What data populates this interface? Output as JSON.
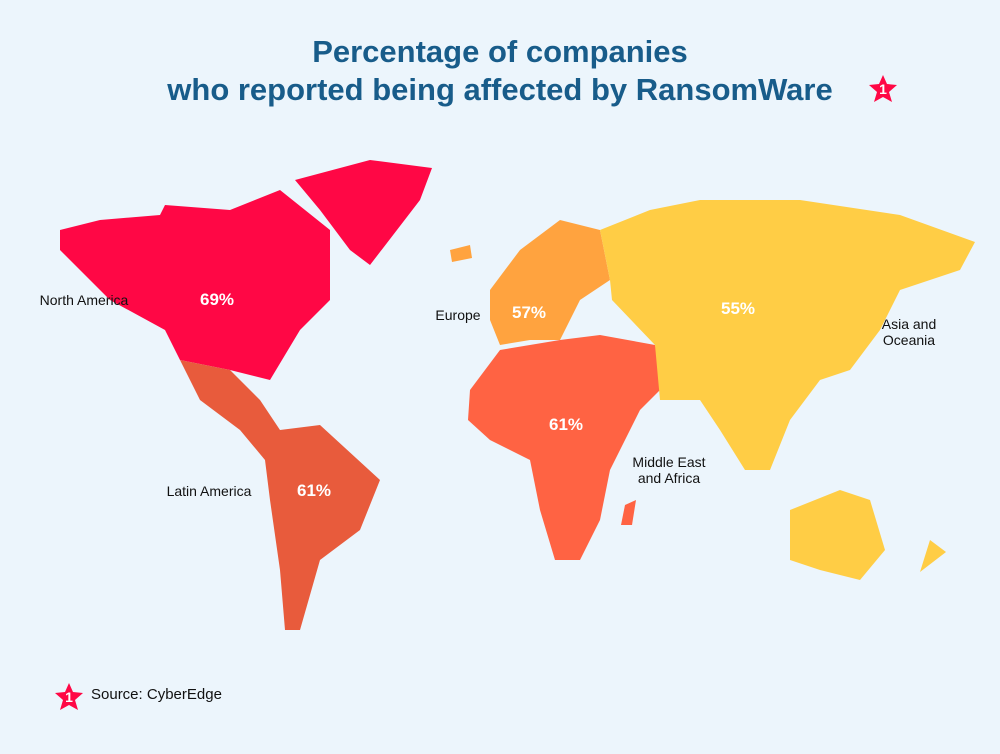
{
  "chart_data": {
    "type": "map",
    "title": [
      "Percentage of companies",
      "who reported being affected by RansomWare"
    ],
    "footnote_marker": "1",
    "categories": [
      "North America",
      "Latin America",
      "Europe",
      "Middle East and Africa",
      "Asia and Oceania"
    ],
    "values": [
      69,
      61,
      57,
      61,
      55
    ],
    "value_labels": [
      "69%",
      "61%",
      "57%",
      "61%",
      "55%"
    ],
    "colors": [
      "#ff0745",
      "#e85b3c",
      "#ffa33f",
      "#ff6343",
      "#ffcd45"
    ],
    "source": "Source: CyberEdge"
  }
}
